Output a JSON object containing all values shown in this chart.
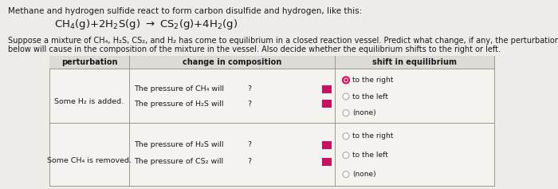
{
  "title_line1": "Methane and hydrogen sulfide react to form carbon disulfide and hydrogen, like this:",
  "paragraph_line1": "Suppose a mixture of CH₄, H₂S, CS₂, and H₂ has come to equilibrium in a closed reaction vessel. Predict what change, if any, the perturbations in the table",
  "paragraph_line2": "below will cause in the composition of the mixture in the vessel. Also decide whether the equilibrium shifts to the right or left.",
  "col_headers": [
    "perturbation",
    "change in composition",
    "shift in equilibrium"
  ],
  "row1_perturb": "Some H₂ is added.",
  "row1_changes": [
    "The pressure of CH₄ will",
    "The pressure of H₂S will"
  ],
  "row1_shift": [
    "to the right",
    "to the left",
    "(none)"
  ],
  "row1_selected": 0,
  "row2_perturb": "Some CH₄ is removed.",
  "row2_changes": [
    "The pressure of H₂S will",
    "The pressure of CS₂ will"
  ],
  "row2_shift": [
    "to the right",
    "to the left",
    "(none)"
  ],
  "row2_selected": -1,
  "bg_color": "#eeece8",
  "table_bg": "#f5f3f0",
  "header_bg": "#dddbd6",
  "border_color": "#999990",
  "text_color": "#1a1a1a",
  "radio_selected_color": "#e8004a",
  "radio_unselected_color": "#aaaaaa",
  "dropdown_color": "#cc1060",
  "font_size_title": 7.5,
  "font_size_eq": 9.5,
  "font_size_para": 7.0,
  "font_size_table_header": 7.0,
  "font_size_table_body": 6.8
}
